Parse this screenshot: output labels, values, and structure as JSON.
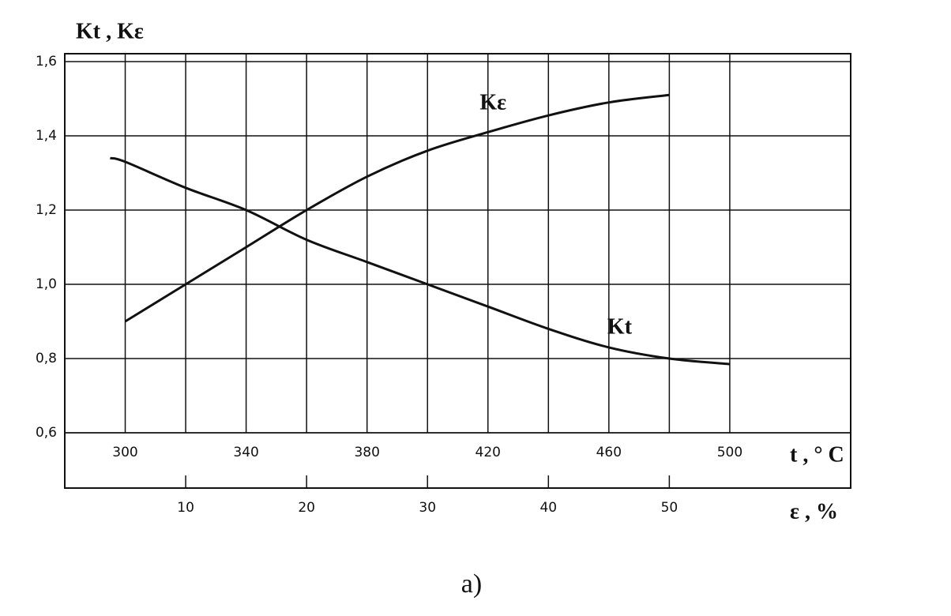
{
  "chart_data": {
    "type": "line",
    "y_label": "Kt , Kε",
    "x_label": "t , ° C",
    "x2_label": "ε , %",
    "caption": "a)",
    "ylim": [
      0.6,
      1.6
    ],
    "yticks": [
      {
        "value": 0.6,
        "label": "0,6"
      },
      {
        "value": 0.8,
        "label": "0,8"
      },
      {
        "value": 1.0,
        "label": "1,0"
      },
      {
        "value": 1.2,
        "label": "1,2"
      },
      {
        "value": 1.4,
        "label": "1,4"
      },
      {
        "value": 1.6,
        "label": "1,6"
      }
    ],
    "xlim": [
      280,
      540
    ],
    "xticks": [
      300,
      340,
      380,
      420,
      460,
      500
    ],
    "x2lim": [
      0,
      65
    ],
    "x2ticks": [
      10,
      20,
      30,
      40,
      50
    ],
    "grid": true,
    "series": [
      {
        "name": "Kt",
        "color": "#111111",
        "x": [
          295,
          300,
          320,
          340,
          360,
          380,
          400,
          420,
          440,
          460,
          480,
          500
        ],
        "values": [
          1.34,
          1.33,
          1.26,
          1.2,
          1.12,
          1.06,
          1.0,
          0.94,
          0.88,
          0.83,
          0.8,
          0.785
        ]
      },
      {
        "name": "Kε",
        "color": "#111111",
        "axis": "x2",
        "x": [
          5,
          10,
          15,
          20,
          25,
          30,
          35,
          40,
          45,
          50
        ],
        "values": [
          0.9,
          1.0,
          1.1,
          1.2,
          1.29,
          1.36,
          1.41,
          1.455,
          1.49,
          1.51
        ]
      }
    ]
  }
}
